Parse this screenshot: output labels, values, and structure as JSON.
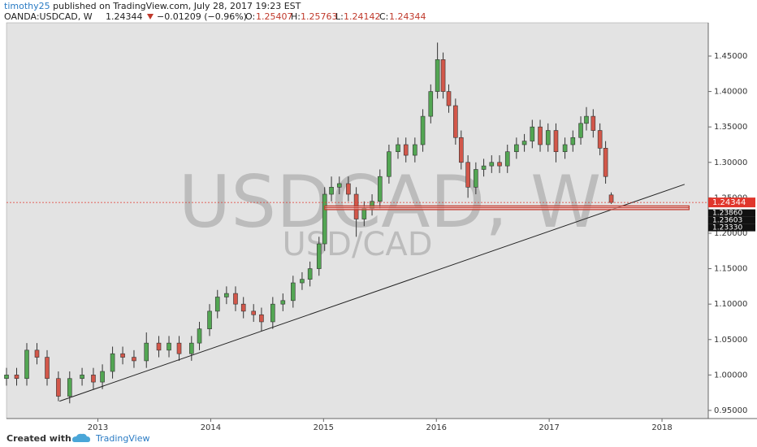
{
  "header": {
    "publisher": "timothy25",
    "published": "published on TradingView.com, July 28, 2017 19:23 EST",
    "symbol": "OANDA:USDCAD, W",
    "change": "−0.01209 (−0.96%)",
    "o_label": "O:",
    "h_label": "H:",
    "l_label": "L:",
    "c_label": "C:"
  },
  "chart_data": {
    "type": "candlestick",
    "x": [
      2012.19,
      2012.28,
      2012.37,
      2012.46,
      2012.55,
      2012.65,
      2012.75,
      2012.86,
      2012.96,
      2013.04,
      2013.13,
      2013.22,
      2013.32,
      2013.43,
      2013.54,
      2013.63,
      2013.72,
      2013.83,
      2013.9,
      2013.99,
      2014.06,
      2014.14,
      2014.22,
      2014.29,
      2014.38,
      2014.45,
      2014.55,
      2014.64,
      2014.73,
      2014.81,
      2014.88,
      2014.96,
      2015.01,
      2015.07,
      2015.14,
      2015.22,
      2015.29,
      2015.36,
      2015.43,
      2015.5,
      2015.58,
      2015.66,
      2015.73,
      2015.81,
      2015.88,
      2015.95,
      2016.01,
      2016.06,
      2016.11,
      2016.17,
      2016.22,
      2016.28,
      2016.35,
      2016.42,
      2016.49,
      2016.56,
      2016.63,
      2016.71,
      2016.78,
      2016.85,
      2016.92,
      2016.99,
      2017.06,
      2017.14,
      2017.21,
      2017.28,
      2017.33,
      2017.39,
      2017.45,
      2017.5,
      2017.55
    ],
    "open": [
      0.995,
      1.0,
      0.995,
      1.035,
      1.025,
      0.995,
      0.97,
      0.995,
      1.0,
      0.99,
      1.005,
      1.03,
      1.025,
      1.02,
      1.045,
      1.035,
      1.045,
      1.03,
      1.045,
      1.065,
      1.09,
      1.11,
      1.115,
      1.1,
      1.09,
      1.085,
      1.075,
      1.1,
      1.105,
      1.13,
      1.135,
      1.15,
      1.185,
      1.255,
      1.265,
      1.27,
      1.255,
      1.22,
      1.235,
      1.245,
      1.28,
      1.315,
      1.325,
      1.31,
      1.325,
      1.365,
      1.4,
      1.445,
      1.4,
      1.38,
      1.335,
      1.3,
      1.265,
      1.29,
      1.295,
      1.3,
      1.295,
      1.315,
      1.325,
      1.33,
      1.35,
      1.325,
      1.345,
      1.315,
      1.325,
      1.335,
      1.355,
      1.365,
      1.345,
      1.32,
      1.25407
    ],
    "high": [
      1.01,
      1.01,
      1.045,
      1.045,
      1.035,
      1.005,
      1.005,
      1.01,
      1.01,
      1.015,
      1.04,
      1.04,
      1.035,
      1.06,
      1.055,
      1.055,
      1.055,
      1.055,
      1.075,
      1.1,
      1.12,
      1.125,
      1.125,
      1.11,
      1.1,
      1.095,
      1.11,
      1.115,
      1.14,
      1.145,
      1.16,
      1.195,
      1.265,
      1.28,
      1.28,
      1.28,
      1.265,
      1.245,
      1.255,
      1.29,
      1.325,
      1.335,
      1.335,
      1.335,
      1.375,
      1.41,
      1.469,
      1.455,
      1.41,
      1.39,
      1.345,
      1.31,
      1.3,
      1.305,
      1.31,
      1.31,
      1.325,
      1.335,
      1.34,
      1.36,
      1.36,
      1.355,
      1.355,
      1.335,
      1.345,
      1.365,
      1.378,
      1.375,
      1.355,
      1.33,
      1.25763
    ],
    "low": [
      0.985,
      0.985,
      0.985,
      1.015,
      0.985,
      0.963,
      0.96,
      0.985,
      0.98,
      0.98,
      0.995,
      1.015,
      1.01,
      1.01,
      1.025,
      1.025,
      1.02,
      1.02,
      1.035,
      1.055,
      1.08,
      1.1,
      1.09,
      1.08,
      1.075,
      1.062,
      1.065,
      1.09,
      1.095,
      1.12,
      1.125,
      1.14,
      1.175,
      1.245,
      1.255,
      1.245,
      1.195,
      1.21,
      1.225,
      1.235,
      1.27,
      1.305,
      1.3,
      1.3,
      1.315,
      1.355,
      1.39,
      1.39,
      1.37,
      1.325,
      1.29,
      1.25,
      1.255,
      1.28,
      1.285,
      1.285,
      1.285,
      1.305,
      1.315,
      1.32,
      1.315,
      1.315,
      1.3,
      1.305,
      1.315,
      1.325,
      1.345,
      1.335,
      1.31,
      1.27,
      1.24142
    ],
    "close": [
      1.0,
      0.995,
      1.035,
      1.025,
      0.995,
      0.97,
      0.995,
      1.0,
      0.99,
      1.005,
      1.03,
      1.025,
      1.02,
      1.045,
      1.035,
      1.045,
      1.03,
      1.045,
      1.065,
      1.09,
      1.11,
      1.115,
      1.1,
      1.09,
      1.085,
      1.075,
      1.1,
      1.105,
      1.13,
      1.135,
      1.15,
      1.185,
      1.255,
      1.265,
      1.27,
      1.255,
      1.22,
      1.235,
      1.245,
      1.28,
      1.315,
      1.325,
      1.31,
      1.325,
      1.365,
      1.4,
      1.445,
      1.4,
      1.38,
      1.335,
      1.3,
      1.265,
      1.29,
      1.295,
      1.3,
      1.295,
      1.315,
      1.325,
      1.33,
      1.35,
      1.325,
      1.345,
      1.315,
      1.325,
      1.335,
      1.355,
      1.365,
      1.345,
      1.32,
      1.28,
      1.24344
    ],
    "up_color": "#53a653",
    "down_color": "#d2574a",
    "wick_color": "#333333",
    "last_color": "#e0362c",
    "xlim": [
      2012.19,
      2018.41
    ],
    "xticks": [
      2013,
      2014,
      2015,
      2016,
      2017,
      2018
    ],
    "ylim": [
      0.9385,
      1.497
    ],
    "yticks": [
      {
        "value": 0.95,
        "label": "0.95000"
      },
      {
        "value": 1.0,
        "label": "1.00000"
      },
      {
        "value": 1.05,
        "label": "1.05000"
      },
      {
        "value": 1.1,
        "label": "1.10000"
      },
      {
        "value": 1.15,
        "label": "1.15000"
      },
      {
        "value": 1.2,
        "label": "1.20000"
      },
      {
        "value": 1.25,
        "label": "1.25000"
      },
      {
        "value": 1.3,
        "label": "1.30000"
      },
      {
        "value": 1.35,
        "label": "1.35000"
      },
      {
        "value": 1.4,
        "label": "1.40000"
      },
      {
        "value": 1.45,
        "label": "1.45000"
      }
    ],
    "watermark": "USDCAD, W",
    "watermark_sub": "USD/CAD",
    "trendline": {
      "x": [
        2012.66,
        2018.2
      ],
      "y": [
        0.963,
        1.269
      ]
    },
    "zone": {
      "x": [
        2015.01,
        2018.24
      ],
      "levels": [
        {
          "value": 1.2386,
          "label": "1.23860"
        },
        1.23603,
        {
          "value": 1.2333,
          "label": "1.23330"
        }
      ]
    }
  },
  "footer": {
    "created": "Created with",
    "brand": "TradingView"
  }
}
